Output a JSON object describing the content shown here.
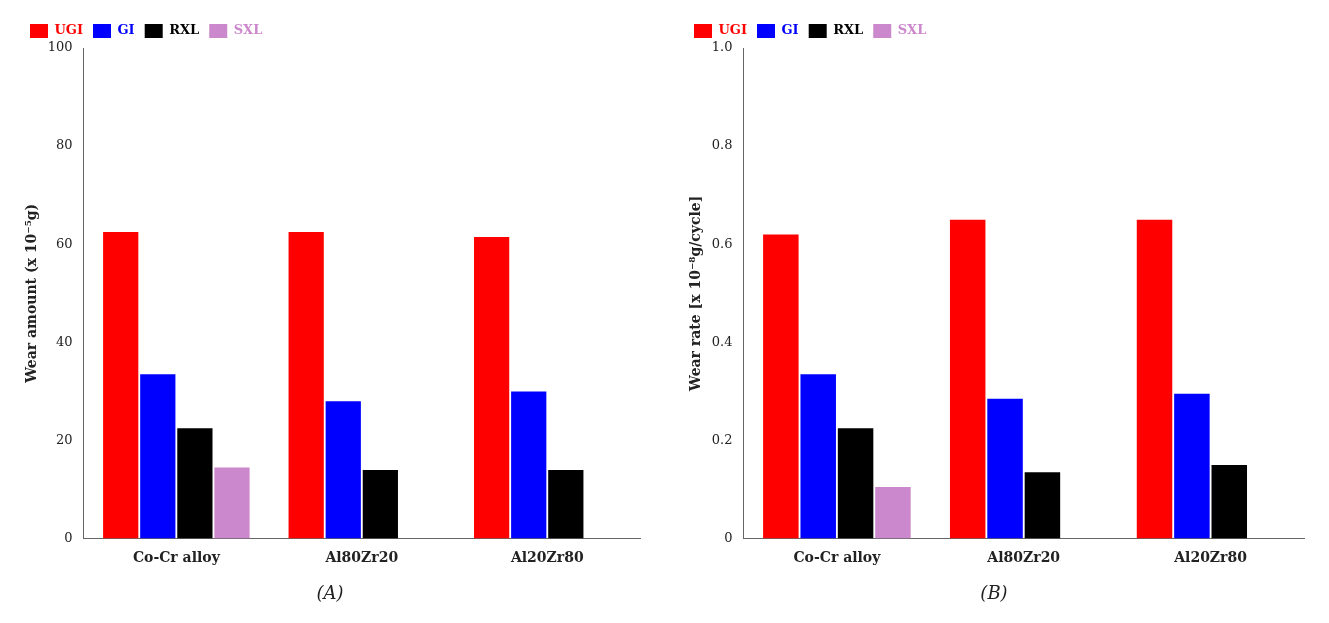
{
  "chart_data": [
    {
      "type": "bar",
      "title": "(A)",
      "ylabel": "Wear amount (x 10⁻⁵g)",
      "categories": [
        "Co-Cr alloy",
        "Al80Zr20",
        "Al20Zr80"
      ],
      "series": [
        {
          "name": "UGI",
          "color": "#ff0000",
          "values": [
            62.5,
            62.5,
            61.5
          ]
        },
        {
          "name": "GI",
          "color": "#0000ff",
          "values": [
            33.5,
            28.0,
            30.0
          ]
        },
        {
          "name": "RXL",
          "color": "#000000",
          "values": [
            22.5,
            14.0,
            14.0
          ]
        },
        {
          "name": "SXL",
          "color": "#cc88cc",
          "values": [
            14.5,
            0.0,
            0.0
          ]
        }
      ],
      "ylim": [
        0,
        100
      ],
      "yticks": [
        0,
        20,
        40,
        60,
        80,
        100
      ],
      "grid": false,
      "legend": "upper left"
    },
    {
      "type": "bar",
      "title": "(B)",
      "ylabel": "Wear rate [x 10⁻⁸g/cycle]",
      "categories": [
        "Co-Cr alloy",
        "Al80Zr20",
        "Al20Zr80"
      ],
      "series": [
        {
          "name": "UGI",
          "color": "#ff0000",
          "values": [
            0.62,
            0.65,
            0.65
          ]
        },
        {
          "name": "GI",
          "color": "#0000ff",
          "values": [
            0.335,
            0.285,
            0.295
          ]
        },
        {
          "name": "RXL",
          "color": "#000000",
          "values": [
            0.225,
            0.135,
            0.15
          ]
        },
        {
          "name": "SXL",
          "color": "#cc88cc",
          "values": [
            0.105,
            0.0,
            0.0
          ]
        }
      ],
      "ylim": [
        0,
        1.0
      ],
      "yticks": [
        0,
        0.2,
        0.4,
        0.6,
        0.8,
        {
          "value": 1.0,
          "label": "1.0"
        }
      ],
      "grid": false,
      "legend": "upper left"
    }
  ]
}
